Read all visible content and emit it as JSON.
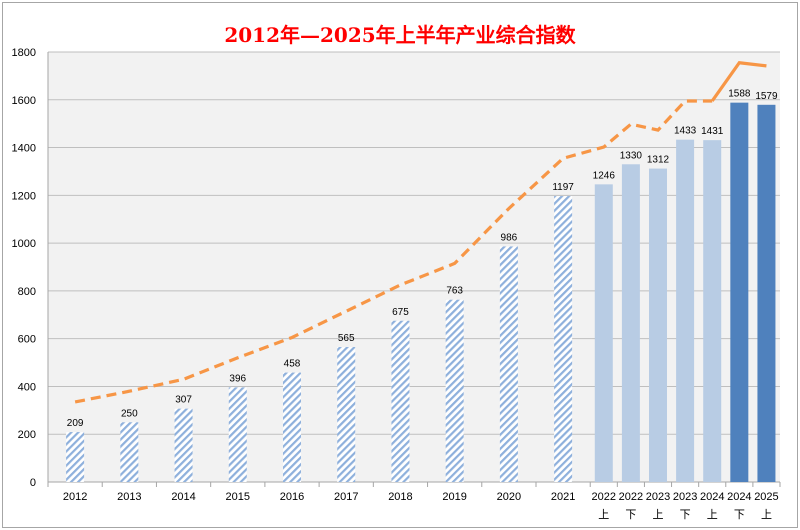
{
  "chart_data": {
    "type": "bar",
    "title": "2012年—2025年上半年产业综合指数",
    "ylim": [
      0,
      1800
    ],
    "yticks": [
      0,
      200,
      400,
      600,
      800,
      1000,
      1200,
      1400,
      1600,
      1800
    ],
    "grid": true,
    "legend": "none",
    "categories": [
      {
        "label": "2012",
        "sub": ""
      },
      {
        "label": "2013",
        "sub": ""
      },
      {
        "label": "2014",
        "sub": ""
      },
      {
        "label": "2015",
        "sub": ""
      },
      {
        "label": "2016",
        "sub": ""
      },
      {
        "label": "2017",
        "sub": ""
      },
      {
        "label": "2018",
        "sub": ""
      },
      {
        "label": "2019",
        "sub": ""
      },
      {
        "label": "2020",
        "sub": ""
      },
      {
        "label": "2021",
        "sub": ""
      },
      {
        "label": "2022",
        "sub": "上"
      },
      {
        "label": "2022",
        "sub": "下"
      },
      {
        "label": "2023",
        "sub": "上"
      },
      {
        "label": "2023",
        "sub": "下"
      },
      {
        "label": "2024",
        "sub": "上"
      },
      {
        "label": "2024",
        "sub": "下"
      },
      {
        "label": "2025",
        "sub": "上"
      }
    ],
    "bar_values": [
      209,
      250,
      307,
      396,
      458,
      565,
      675,
      763,
      986,
      1197,
      1246,
      1330,
      1312,
      1433,
      1431,
      1588,
      1579
    ],
    "bar_styles": [
      "hatched",
      "hatched",
      "hatched",
      "hatched",
      "hatched",
      "hatched",
      "hatched",
      "hatched",
      "hatched",
      "hatched",
      "light",
      "light",
      "light",
      "light",
      "light",
      "dark",
      "dark"
    ],
    "line_values": [
      335,
      380,
      430,
      520,
      605,
      715,
      825,
      915,
      1145,
      1355,
      1402,
      1498,
      1473,
      1595,
      1595,
      1755,
      1742
    ],
    "line_dashed_until_index": 14,
    "colors": {
      "hatch": "#8eb0dc",
      "light": "#b8cce4",
      "dark": "#4f81bd",
      "line": "#f79646",
      "plot_bg": "#f2f2f2",
      "grid": "#bfbfbf",
      "title": "#ff0000"
    }
  }
}
